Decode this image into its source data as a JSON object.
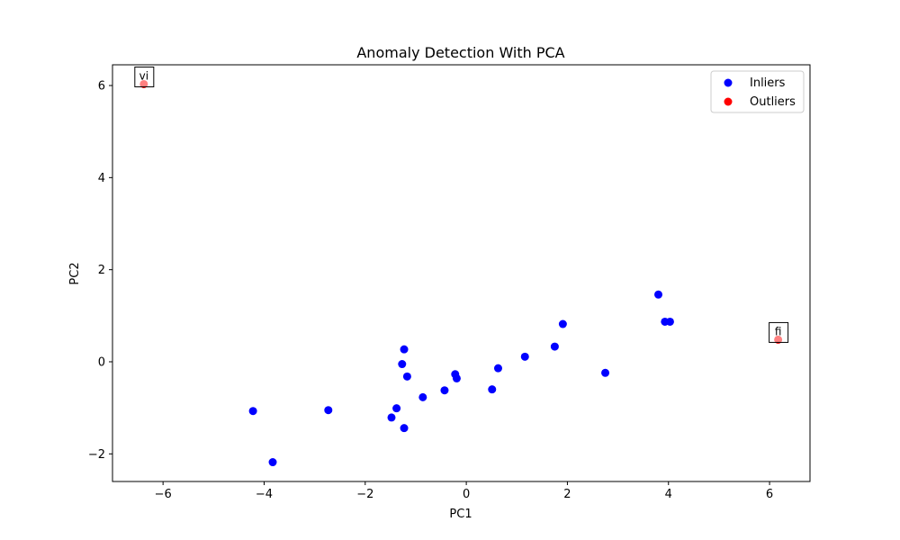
{
  "chart_data": {
    "type": "scatter",
    "title": "Anomaly Detection With PCA",
    "xlabel": "PC1",
    "ylabel": "PC2",
    "xlim": [
      -7.0,
      6.8
    ],
    "ylim": [
      -2.6,
      6.45
    ],
    "xticks": [
      -6,
      -4,
      -2,
      0,
      2,
      4,
      6
    ],
    "yticks": [
      -2,
      0,
      2,
      4,
      6
    ],
    "xtick_labels": [
      "−6",
      "−4",
      "−2",
      "0",
      "2",
      "4",
      "6"
    ],
    "ytick_labels": [
      "−2",
      "0",
      "2",
      "4",
      "6"
    ],
    "grid": false,
    "legend_position": "top-right",
    "series": [
      {
        "name": "Inliers",
        "color": "#0000ff",
        "points": [
          {
            "x": -4.22,
            "y": -1.07
          },
          {
            "x": -3.83,
            "y": -2.18
          },
          {
            "x": -2.73,
            "y": -1.05
          },
          {
            "x": -1.48,
            "y": -1.21
          },
          {
            "x": -1.38,
            "y": -1.01
          },
          {
            "x": -1.27,
            "y": -0.05
          },
          {
            "x": -1.23,
            "y": 0.27
          },
          {
            "x": -1.23,
            "y": -1.44
          },
          {
            "x": -1.17,
            "y": -0.32
          },
          {
            "x": -0.86,
            "y": -0.77
          },
          {
            "x": -0.43,
            "y": -0.62
          },
          {
            "x": -0.22,
            "y": -0.27
          },
          {
            "x": -0.19,
            "y": -0.36
          },
          {
            "x": 0.51,
            "y": -0.6
          },
          {
            "x": 0.63,
            "y": -0.14
          },
          {
            "x": 1.16,
            "y": 0.11
          },
          {
            "x": 1.75,
            "y": 0.33
          },
          {
            "x": 1.91,
            "y": 0.82
          },
          {
            "x": 2.75,
            "y": -0.24
          },
          {
            "x": 3.8,
            "y": 1.46
          },
          {
            "x": 3.93,
            "y": 0.87
          },
          {
            "x": 4.03,
            "y": 0.87
          }
        ]
      },
      {
        "name": "Outliers",
        "color": "#ff0000",
        "points": [
          {
            "x": -6.38,
            "y": 6.03,
            "label": "vi"
          },
          {
            "x": 6.17,
            "y": 0.48,
            "label": "fi"
          }
        ]
      }
    ]
  }
}
